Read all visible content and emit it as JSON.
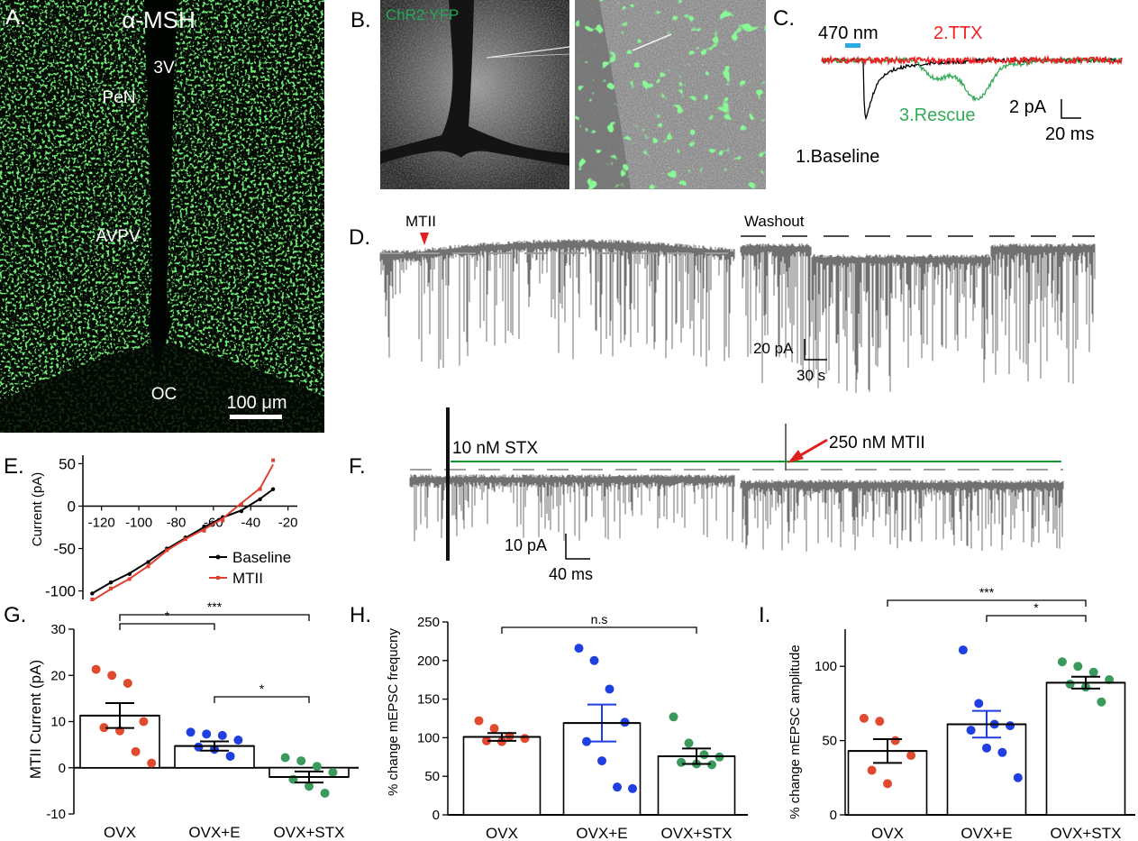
{
  "figure": {
    "panel_letters": [
      "A.",
      "B.",
      "C.",
      "D.",
      "E.",
      "F.",
      "G.",
      "H.",
      "I."
    ]
  },
  "panel_a": {
    "stain": "α-MSH",
    "regions": [
      "3V",
      "PeN",
      "AVPV",
      "OC"
    ],
    "scalebar": "100 μm",
    "color": "#2db52d"
  },
  "panel_b": {
    "label": "ChR2:YFP",
    "color": "#22aa55"
  },
  "panel_c": {
    "light": "470 nm",
    "light_color": "#29abe2",
    "traces": [
      {
        "label": "1.Baseline",
        "color": "#000000"
      },
      {
        "label": "2.TTX",
        "color": "#ee2222"
      },
      {
        "label": "3.Rescue",
        "color": "#33aa55"
      }
    ],
    "scale_y": "2 pA",
    "scale_x": "20 ms"
  },
  "panel_d": {
    "drug": "MTII",
    "drug_marker_color": "#e02020",
    "washout": "Washout",
    "scale_y": "20 pA",
    "scale_x": "30 s"
  },
  "panel_e": {
    "ylabel": "Current (pA)",
    "legend": [
      "Baseline",
      "MTII"
    ]
  },
  "panel_f": {
    "stx": "10 nM STX",
    "mtii": "250 nM MTII",
    "scale_y": "10 pA",
    "scale_x": "40 ms",
    "line_color": "#119933",
    "arrow_color": "#e02020"
  },
  "panel_g": {
    "ylabel": "MTII Current (pA)",
    "sig": [
      "*",
      "***",
      "*"
    ]
  },
  "panel_h": {
    "ylabel": "% change mEPSC frequcny",
    "sig": [
      "n.s"
    ]
  },
  "panel_i": {
    "ylabel": "% change mEPSC amplitude",
    "sig": [
      "***",
      "*"
    ]
  },
  "chart_data": [
    {
      "type": "line",
      "xlabel": "",
      "ylabel": "Current (pA)",
      "xlim": [
        -130,
        -15
      ],
      "ylim": [
        -110,
        60
      ],
      "xticks": [
        -120,
        -100,
        -80,
        -60,
        -40,
        -20
      ],
      "yticks": [
        -100,
        -50,
        0,
        50
      ],
      "legend_position": "bottom-right",
      "series": [
        {
          "name": "Baseline",
          "color": "#000000",
          "x": [
            -125,
            -115,
            -105,
            -95,
            -85,
            -75,
            -65,
            -55,
            -45,
            -35,
            -28
          ],
          "y": [
            -103,
            -90,
            -80,
            -66,
            -50,
            -37,
            -24,
            -13,
            -6,
            8,
            20
          ]
        },
        {
          "name": "MTII",
          "color": "#e04030",
          "x": [
            -125,
            -115,
            -105,
            -95,
            -85,
            -75,
            -65,
            -55,
            -45,
            -35,
            -28
          ],
          "y": [
            -110,
            -97,
            -86,
            -71,
            -52,
            -39,
            -29,
            -17,
            2,
            20,
            54
          ]
        }
      ]
    },
    {
      "type": "bar",
      "ylabel": "MTII Current (pA)",
      "ylim": [
        -10,
        30
      ],
      "yticks": [
        -10,
        0,
        10,
        20,
        30
      ],
      "categories": [
        "OVX",
        "OVX+E",
        "OVX+STX"
      ],
      "values": [
        11.3,
        4.7,
        -2.0
      ],
      "sem": [
        2.7,
        1.0,
        1.2
      ],
      "point_colors": [
        "#e04a2e",
        "#1f3fe0",
        "#3a9a5c"
      ],
      "points": [
        [
          21.3,
          20.0,
          18.3,
          10.0,
          8.7,
          8.0,
          3.5,
          1.0
        ],
        [
          7.7,
          7.3,
          7.0,
          6.0,
          4.5,
          4.0,
          2.5
        ],
        [
          2.2,
          1.5,
          0.3,
          -1.0,
          -2.5,
          -4.0,
          -5.5
        ]
      ],
      "significance": [
        {
          "from": 0,
          "to": 1,
          "label": "*"
        },
        {
          "from": 0,
          "to": 2,
          "label": "***"
        },
        {
          "from": 1,
          "to": 2,
          "label": "*"
        }
      ]
    },
    {
      "type": "bar",
      "ylabel": "% change mEPSC frequcny",
      "ylim": [
        0,
        250
      ],
      "yticks": [
        0,
        50,
        100,
        150,
        200,
        250
      ],
      "categories": [
        "OVX",
        "OVX+E",
        "OVX+STX"
      ],
      "values": [
        101,
        119,
        76
      ],
      "sem": [
        5,
        24,
        10
      ],
      "point_colors": [
        "#e04a2e",
        "#1f3fe0",
        "#3a9a5c"
      ],
      "points": [
        [
          122,
          112,
          102,
          99,
          96,
          95
        ],
        [
          216,
          200,
          163,
          120,
          95,
          70,
          36,
          34
        ],
        [
          127,
          93,
          78,
          75,
          68,
          66,
          65
        ]
      ],
      "significance": [
        {
          "from": 0,
          "to": 2,
          "label": "n.s"
        }
      ]
    },
    {
      "type": "bar",
      "ylabel": "% change mEPSC amplitude",
      "ylim": [
        0,
        125
      ],
      "yticks": [
        0,
        50,
        100
      ],
      "categories": [
        "OVX",
        "OVX+E",
        "OVX+STX"
      ],
      "values": [
        43,
        61,
        89
      ],
      "sem": [
        8,
        9,
        4
      ],
      "point_colors": [
        "#e04a2e",
        "#1f3fe0",
        "#3a9a5c"
      ],
      "points": [
        [
          65,
          63,
          50,
          40,
          30,
          21
        ],
        [
          111,
          75,
          61,
          60,
          57,
          45,
          42,
          25
        ],
        [
          103,
          100,
          96,
          91,
          88,
          86,
          76
        ]
      ],
      "significance": [
        {
          "from": 0,
          "to": 2,
          "label": "***"
        },
        {
          "from": 1,
          "to": 2,
          "label": "*"
        }
      ]
    }
  ]
}
